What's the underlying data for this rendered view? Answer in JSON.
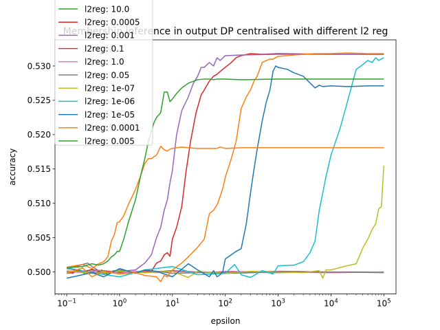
{
  "chart_data": {
    "type": "line",
    "title": "Membership inference in output DP centralised with different l2 reg",
    "xlabel": "epsilon",
    "ylabel": "accuracy",
    "xscale": "log",
    "xlim": [
      0.06,
      170000
    ],
    "ylim": [
      0.4968,
      0.5338
    ],
    "grid": false,
    "legend_position": "upper-left",
    "x_ticks": [
      0.1,
      1,
      10,
      100,
      1000,
      10000,
      100000
    ],
    "x_tick_labels": [
      {
        "base": "10",
        "exp": "−1"
      },
      {
        "base": "10",
        "exp": "0"
      },
      {
        "base": "10",
        "exp": "1"
      },
      {
        "base": "10",
        "exp": "2"
      },
      {
        "base": "10",
        "exp": "3"
      },
      {
        "base": "10",
        "exp": "4"
      },
      {
        "base": "10",
        "exp": "5"
      }
    ],
    "y_ticks": [
      0.5,
      0.505,
      0.51,
      0.515,
      0.52,
      0.525,
      0.53
    ],
    "y_tick_labels": [
      "0.500",
      "0.505",
      "0.510",
      "0.515",
      "0.520",
      "0.525",
      "0.530"
    ],
    "series": [
      {
        "name": "l2reg: 10.0",
        "color": "#2ca02c",
        "x": [
          0.1,
          0.13,
          0.17,
          0.22,
          0.28,
          0.36,
          0.46,
          0.6,
          0.77,
          1,
          10,
          100,
          1000,
          10000,
          100000
        ],
        "y": [
          0.5002,
          0.4998,
          0.5004,
          0.4997,
          0.5001,
          0.4999,
          0.5003,
          0.4996,
          0.5002,
          0.4999,
          0.5001,
          0.4998,
          0.5,
          0.4999,
          0.5
        ]
      },
      {
        "name": "l2reg: 0.0005",
        "color": "#d62728",
        "x": [
          0.1,
          0.3,
          1,
          2,
          3,
          4,
          5,
          6,
          7,
          8,
          9,
          10,
          12,
          15,
          18,
          22,
          28,
          35,
          40,
          50,
          60,
          70,
          80,
          100,
          130,
          160,
          200,
          300,
          500,
          1000,
          10000,
          100000
        ],
        "y": [
          0.4998,
          0.5003,
          0.5,
          0.4999,
          0.5002,
          0.5001,
          0.5013,
          0.5016,
          0.5025,
          0.5028,
          0.5023,
          0.5048,
          0.5065,
          0.5095,
          0.5145,
          0.519,
          0.5232,
          0.5258,
          0.5265,
          0.5278,
          0.5285,
          0.5288,
          0.5292,
          0.5298,
          0.5305,
          0.5312,
          0.5315,
          0.5318,
          0.5317,
          0.5318,
          0.5317,
          0.5317
        ]
      },
      {
        "name": "l2reg: 0.001",
        "color": "#9467bd",
        "x": [
          0.1,
          0.3,
          1,
          2,
          3,
          4,
          5,
          6,
          7,
          8,
          9,
          10,
          12,
          15,
          20,
          25,
          30,
          35,
          40,
          50,
          60,
          70,
          80,
          100,
          200,
          1000,
          100000
        ],
        "y": [
          0.5005,
          0.4999,
          0.5001,
          0.5003,
          0.5013,
          0.5025,
          0.505,
          0.5065,
          0.509,
          0.5105,
          0.513,
          0.5148,
          0.52,
          0.5235,
          0.5255,
          0.5275,
          0.5285,
          0.5298,
          0.5298,
          0.5305,
          0.53,
          0.5312,
          0.5308,
          0.5315,
          0.5316,
          0.5317,
          0.5317
        ]
      },
      {
        "name": "l2reg: 0.1",
        "color": "#8c564b",
        "x": [
          0.1,
          0.15,
          0.2,
          0.3,
          0.5,
          1,
          3,
          10,
          30,
          100,
          1000,
          10000,
          100000
        ],
        "y": [
          0.5,
          0.5002,
          0.4999,
          0.5004,
          0.4998,
          0.5001,
          0.4999,
          0.5002,
          0.5,
          0.4999,
          0.5001,
          0.5,
          0.5
        ]
      },
      {
        "name": "l2reg: 1.0",
        "color": "#e377c2",
        "x": [
          0.1,
          0.2,
          0.4,
          1,
          2,
          5,
          10,
          20,
          50,
          100,
          1000,
          10000,
          100000
        ],
        "y": [
          0.5001,
          0.4999,
          0.5002,
          0.4998,
          0.5001,
          0.4999,
          0.5001,
          0.5,
          0.4999,
          0.5001,
          0.5,
          0.4999,
          0.5
        ]
      },
      {
        "name": "l2reg: 0.05",
        "color": "#7f7f7f",
        "x": [
          0.1,
          0.15,
          0.2,
          0.25,
          0.3,
          0.4,
          0.5,
          1,
          2,
          5,
          10,
          100,
          1000,
          10000,
          100000
        ],
        "y": [
          0.5005,
          0.5008,
          0.5011,
          0.5013,
          0.5008,
          0.5002,
          0.4998,
          0.5003,
          0.4999,
          0.5001,
          0.4998,
          0.5,
          0.4999,
          0.5,
          0.4999
        ]
      },
      {
        "name": "l2reg: 1e-07",
        "color": "#bcbd22",
        "x": [
          0.1,
          0.3,
          1,
          3,
          10,
          20,
          30,
          100,
          300,
          1000,
          3000,
          6000,
          7000,
          8000,
          10000,
          20000,
          30000,
          40000,
          50000,
          60000,
          70000,
          80000,
          90000,
          100000
        ],
        "y": [
          0.5002,
          0.4998,
          0.5001,
          0.4999,
          0.5001,
          0.4992,
          0.5001,
          0.4998,
          0.5001,
          0.5,
          0.4999,
          0.5002,
          0.4991,
          0.5003,
          0.5003,
          0.5009,
          0.5012,
          0.5035,
          0.5048,
          0.5062,
          0.507,
          0.5092,
          0.5095,
          0.5155
        ]
      },
      {
        "name": "l2reg: 1e-06",
        "color": "#17becf",
        "x": [
          0.1,
          0.3,
          1,
          3,
          10,
          30,
          100,
          150,
          200,
          300,
          500,
          800,
          1000,
          2000,
          3000,
          4000,
          5000,
          6000,
          7000,
          8000,
          10000,
          15000,
          20000,
          30000,
          40000,
          50000,
          60000,
          70000,
          80000,
          100000
        ],
        "y": [
          0.5006,
          0.4999,
          0.4993,
          0.5003,
          0.5008,
          0.4996,
          0.4998,
          0.5011,
          0.4996,
          0.4992,
          0.5002,
          0.4997,
          0.5009,
          0.501,
          0.5015,
          0.5028,
          0.5045,
          0.509,
          0.5115,
          0.5138,
          0.517,
          0.521,
          0.5245,
          0.5295,
          0.5302,
          0.5308,
          0.5305,
          0.5312,
          0.5308,
          0.5312
        ]
      },
      {
        "name": "l2reg: 1e-05",
        "color": "#1f77b4",
        "x": [
          0.1,
          0.2,
          0.3,
          0.5,
          1,
          2,
          3,
          5,
          10,
          20,
          30,
          50,
          60,
          70,
          80,
          90,
          100,
          130,
          160,
          200,
          250,
          300,
          350,
          400,
          500,
          600,
          700,
          800,
          900,
          1000,
          1500,
          2000,
          3000,
          5000,
          6000,
          7000,
          10000,
          20000,
          50000,
          100000
        ],
        "y": [
          0.4991,
          0.4996,
          0.4999,
          0.4993,
          0.5005,
          0.4998,
          0.5003,
          0.5001,
          0.4993,
          0.5012,
          0.5003,
          0.4993,
          0.5002,
          0.4993,
          0.4996,
          0.5001,
          0.5019,
          0.5025,
          0.503,
          0.5034,
          0.507,
          0.5115,
          0.515,
          0.5178,
          0.522,
          0.5248,
          0.5265,
          0.5292,
          0.53,
          0.5298,
          0.5295,
          0.529,
          0.5285,
          0.5268,
          0.5272,
          0.527,
          0.5271,
          0.527,
          0.5271,
          0.5271
        ]
      },
      {
        "name": "l2reg: 0.0001",
        "color": "#ff7f0e",
        "x": [
          0.1,
          0.2,
          0.3,
          0.5,
          1,
          2,
          3,
          5,
          6,
          7,
          8,
          10,
          15,
          20,
          30,
          40,
          50,
          60,
          70,
          80,
          90,
          100,
          130,
          160,
          200,
          250,
          300,
          350,
          400,
          500,
          600,
          700,
          800,
          1000,
          2000,
          5000,
          10000,
          20000,
          50000,
          100000
        ],
        "y": [
          0.4998,
          0.5006,
          0.4993,
          0.5001,
          0.4997,
          0.4999,
          0.4995,
          0.4993,
          0.4986,
          0.4995,
          0.4993,
          0.5003,
          0.5013,
          0.5022,
          0.5036,
          0.5048,
          0.5085,
          0.509,
          0.5098,
          0.511,
          0.5122,
          0.5138,
          0.5165,
          0.519,
          0.5238,
          0.5255,
          0.5265,
          0.5278,
          0.5285,
          0.5305,
          0.5308,
          0.531,
          0.531,
          0.5314,
          0.5316,
          0.5318,
          0.5318,
          0.5319,
          0.5318,
          0.5318
        ]
      },
      {
        "name": "l2reg: 0.0001",
        "color": "#ff7f0e",
        "x": [
          0.1,
          0.2,
          0.3,
          0.4,
          0.5,
          0.6,
          0.7,
          0.8,
          0.9,
          1,
          1.2,
          1.5,
          2,
          2.5,
          3,
          3.5,
          4,
          4.5,
          5,
          6,
          7,
          8,
          9,
          10,
          12,
          15,
          20,
          30,
          50,
          70,
          80,
          100,
          200,
          1000,
          10000,
          100000
        ],
        "y": [
          0.5007,
          0.5011,
          0.5005,
          0.5012,
          0.5015,
          0.5022,
          0.5045,
          0.5055,
          0.5072,
          0.5073,
          0.5082,
          0.51,
          0.512,
          0.514,
          0.5158,
          0.5165,
          0.5165,
          0.5168,
          0.517,
          0.5183,
          0.5178,
          0.5176,
          0.5179,
          0.518,
          0.5181,
          0.5182,
          0.5181,
          0.518,
          0.518,
          0.518,
          0.5182,
          0.518,
          0.5181,
          0.5181,
          0.5181,
          0.5181
        ]
      },
      {
        "name": "l2reg: 0.005",
        "color": "#2ca02c",
        "x": [
          0.1,
          0.2,
          0.3,
          0.4,
          0.5,
          0.6,
          0.7,
          0.8,
          0.9,
          1,
          1.2,
          1.5,
          2,
          2.5,
          3,
          3.5,
          4,
          4.5,
          5,
          6,
          7,
          8,
          9,
          10,
          12,
          15,
          20,
          30,
          40,
          50,
          60,
          70,
          100,
          200,
          1000,
          10000,
          100000
        ],
        "y": [
          0.5006,
          0.5008,
          0.5012,
          0.501,
          0.5012,
          0.5016,
          0.5022,
          0.5025,
          0.503,
          0.503,
          0.5048,
          0.5075,
          0.5105,
          0.514,
          0.5165,
          0.519,
          0.5205,
          0.5218,
          0.5225,
          0.5232,
          0.5262,
          0.5262,
          0.5248,
          0.5252,
          0.526,
          0.5268,
          0.5275,
          0.528,
          0.5281,
          0.5281,
          0.528,
          0.5281,
          0.5281,
          0.528,
          0.5281,
          0.5281,
          0.5281
        ]
      }
    ],
    "legend": [
      {
        "label": "l2reg: 10.0",
        "color": "#2ca02c"
      },
      {
        "label": "l2reg: 0.0005",
        "color": "#d62728"
      },
      {
        "label": "l2reg: 0.001",
        "color": "#9467bd"
      },
      {
        "label": "l2reg: 0.1",
        "color": "#8c564b"
      },
      {
        "label": "l2reg: 1.0",
        "color": "#e377c2"
      },
      {
        "label": "l2reg: 0.05",
        "color": "#7f7f7f"
      },
      {
        "label": "l2reg: 1e-07",
        "color": "#bcbd22"
      },
      {
        "label": "l2reg: 1e-06",
        "color": "#17becf"
      },
      {
        "label": "l2reg: 1e-05",
        "color": "#1f77b4"
      },
      {
        "label": "l2reg: 0.0001",
        "color": "#ff7f0e"
      },
      {
        "label": "l2reg: 0.005",
        "color": "#2ca02c"
      }
    ]
  }
}
